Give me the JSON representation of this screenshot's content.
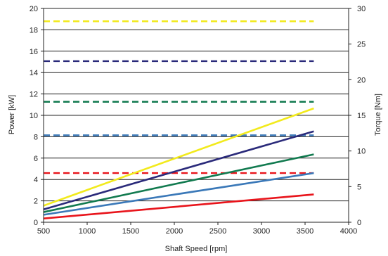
{
  "chart_data": {
    "type": "line",
    "title": "",
    "xlabel": "Shaft Speed [rpm]",
    "ylabel": "Power [kW]",
    "y2label": "Torque [Nm]",
    "xlim": [
      500,
      4000
    ],
    "ylim": [
      0,
      20
    ],
    "y2lim": [
      0,
      30
    ],
    "xticks": [
      500,
      1000,
      1500,
      2000,
      2500,
      3000,
      3500,
      4000
    ],
    "yticks": [
      0,
      2,
      4,
      6,
      8,
      10,
      12,
      14,
      16,
      18,
      20
    ],
    "y2ticks": [
      0,
      5,
      10,
      15,
      20,
      25,
      30
    ],
    "grid": "horizontal",
    "legend": "none",
    "power_series": [
      {
        "color": "#e8141b",
        "x": [
          500,
          3600
        ],
        "y": [
          0.35,
          2.6
        ]
      },
      {
        "color": "#3a78b8",
        "x": [
          500,
          3600
        ],
        "y": [
          0.7,
          4.6
        ]
      },
      {
        "color": "#117a4f",
        "x": [
          500,
          3600
        ],
        "y": [
          0.95,
          6.35
        ]
      },
      {
        "color": "#2a2a7a",
        "x": [
          500,
          3600
        ],
        "y": [
          1.2,
          8.5
        ]
      },
      {
        "color": "#f2ea1c",
        "x": [
          500,
          3600
        ],
        "y": [
          1.55,
          10.65
        ]
      }
    ],
    "torque_series": [
      {
        "color": "#e8141b",
        "x": [
          500,
          3600
        ],
        "y": [
          6.9,
          6.9
        ]
      },
      {
        "color": "#3a78b8",
        "x": [
          500,
          3600
        ],
        "y": [
          12.2,
          12.2
        ]
      },
      {
        "color": "#117a4f",
        "x": [
          500,
          3600
        ],
        "y": [
          16.9,
          16.9
        ]
      },
      {
        "color": "#2a2a7a",
        "x": [
          500,
          3600
        ],
        "y": [
          22.6,
          22.6
        ]
      },
      {
        "color": "#f2ea1c",
        "x": [
          500,
          3600
        ],
        "y": [
          28.2,
          28.2
        ]
      }
    ]
  }
}
